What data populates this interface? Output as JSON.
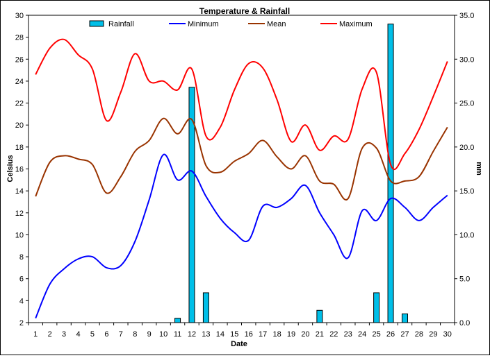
{
  "chart_data": {
    "type": "line+bar",
    "title": "Temperature & Rainfall",
    "xlabel": "Date",
    "ylabel_left": "Celsius",
    "ylabel_right": "mm",
    "grid": false,
    "legend_position": "top",
    "x": [
      1,
      2,
      3,
      4,
      5,
      6,
      7,
      8,
      9,
      10,
      11,
      12,
      13,
      14,
      15,
      16,
      17,
      18,
      19,
      20,
      21,
      22,
      23,
      24,
      25,
      26,
      27,
      28,
      29,
      30
    ],
    "x_tick_labels": [
      "1",
      "2",
      "3",
      "4",
      "5",
      "6",
      "7",
      "8",
      "9",
      "10",
      "11",
      "12",
      "13",
      "14",
      "15",
      "16",
      "17",
      "18",
      "19",
      "20",
      "21",
      "22",
      "23",
      "24",
      "25",
      "26",
      "27",
      "28",
      "29",
      "30"
    ],
    "y_left": {
      "min": 2,
      "max": 30,
      "step": 2,
      "tick_labels": [
        "2",
        "4",
        "6",
        "8",
        "10",
        "12",
        "14",
        "16",
        "18",
        "20",
        "22",
        "24",
        "26",
        "28",
        "30"
      ]
    },
    "y_right": {
      "min": 0,
      "max": 35,
      "step": 5,
      "tick_labels": [
        "0.0",
        "5.0",
        "10.0",
        "15.0",
        "20.0",
        "25.0",
        "30.0",
        "35.0"
      ]
    },
    "series": [
      {
        "name": "Rainfall",
        "type": "bar",
        "axis": "right",
        "color": "#00bfe8",
        "values": [
          0,
          0,
          0,
          0,
          0,
          0,
          0,
          0,
          0,
          0,
          0.5,
          26.8,
          3.4,
          0,
          0,
          0,
          0,
          0,
          0,
          0,
          1.4,
          0,
          0,
          0,
          3.4,
          34.0,
          1.0,
          0,
          0,
          0
        ]
      },
      {
        "name": "Minimum",
        "type": "line",
        "axis": "left",
        "color": "#0000ff",
        "values": [
          2.4,
          5.5,
          6.9,
          7.8,
          8.0,
          7.0,
          7.2,
          9.4,
          13.2,
          17.3,
          15.0,
          15.8,
          13.5,
          11.5,
          10.2,
          9.5,
          12.6,
          12.5,
          13.3,
          14.5,
          12.0,
          10.0,
          7.9,
          12.2,
          11.3,
          13.3,
          12.5,
          11.3,
          12.5,
          13.6
        ]
      },
      {
        "name": "Mean",
        "type": "line",
        "axis": "left",
        "color": "#993300",
        "values": [
          13.5,
          16.6,
          17.2,
          16.9,
          16.4,
          13.8,
          15.3,
          17.6,
          18.6,
          20.6,
          19.2,
          20.5,
          16.3,
          15.7,
          16.7,
          17.4,
          18.6,
          17.1,
          16.0,
          17.2,
          14.9,
          14.6,
          13.3,
          17.9,
          17.9,
          14.9,
          14.9,
          15.3,
          17.6,
          19.8
        ]
      },
      {
        "name": "Maximum",
        "type": "line",
        "axis": "left",
        "color": "#ff0000",
        "values": [
          24.6,
          27.0,
          27.8,
          26.4,
          25.1,
          20.4,
          23.0,
          26.5,
          24.0,
          24.0,
          23.2,
          25.1,
          19.0,
          19.8,
          23.2,
          25.6,
          25.2,
          22.3,
          18.5,
          20.0,
          17.7,
          19.0,
          18.7,
          23.3,
          24.8,
          16.4,
          17.4,
          19.6,
          22.6,
          25.8
        ]
      }
    ]
  }
}
